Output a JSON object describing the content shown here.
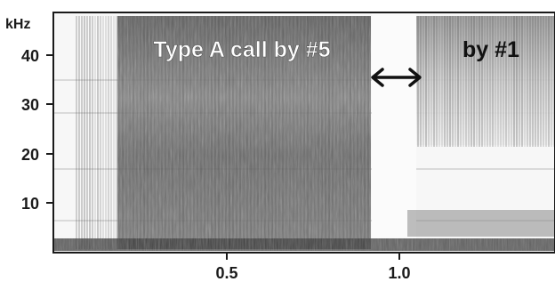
{
  "spectrogram": {
    "y_axis": {
      "unit": "kHz",
      "ticks": [
        "10",
        "20",
        "30",
        "40"
      ],
      "tick_values": [
        10,
        20,
        30,
        40
      ],
      "range": [
        0,
        48
      ]
    },
    "x_axis": {
      "ticks": [
        "0.5",
        "1.0"
      ],
      "tick_values": [
        0.5,
        1.0
      ],
      "range": [
        0,
        1.45
      ]
    },
    "annotations": {
      "call_label": "Type A call by #5",
      "second_label": "by #1",
      "gap_arrow": "double-headed arrow"
    },
    "colors": {
      "background": "#ffffff",
      "text_light": "#ffffff",
      "text_dark": "#111111",
      "ink": "#1a1a1a"
    }
  }
}
